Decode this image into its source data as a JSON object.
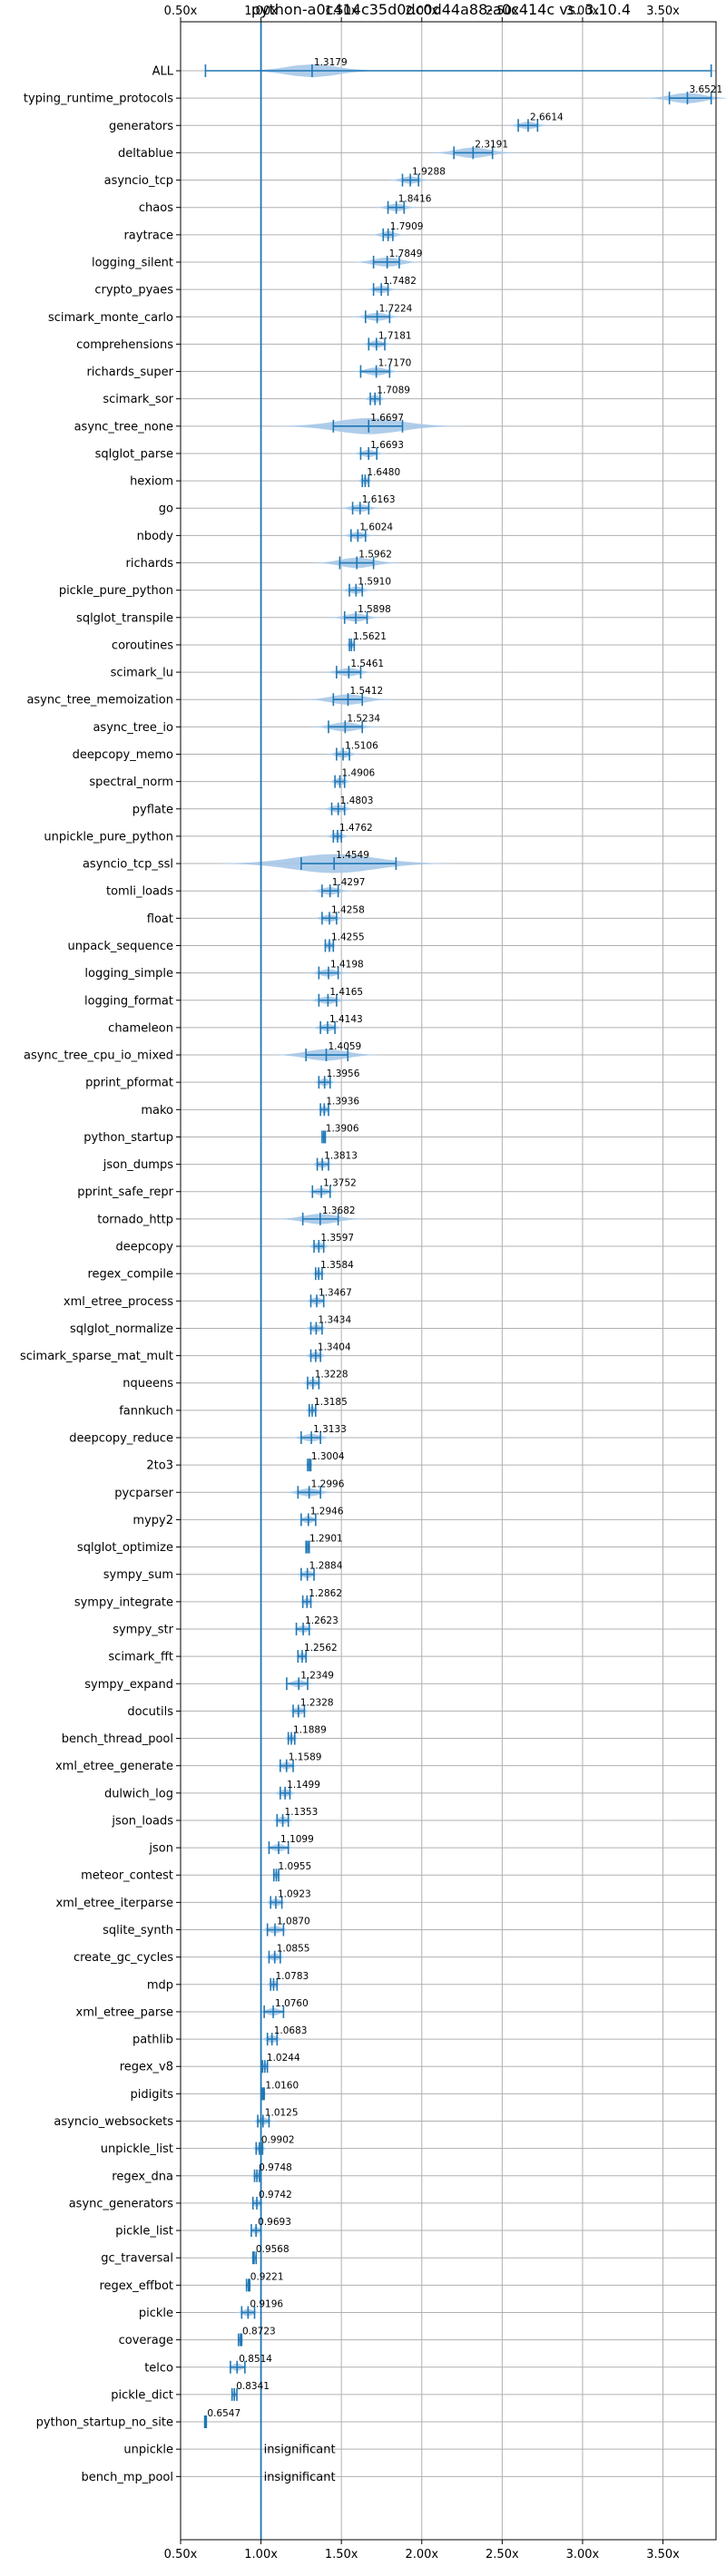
{
  "chart_data": {
    "type": "violin",
    "title": "python-a0c414c35d0dc0d44a88-a0c414c vs. 3.10.4",
    "xlim": [
      0.5,
      3.83
    ],
    "x_ticks": [
      0.5,
      1.0,
      1.5,
      2.0,
      2.5,
      3.0,
      3.5
    ],
    "x_tick_labels": [
      "0.50x",
      "1.00x",
      "1.50x",
      "2.00x",
      "2.50x",
      "3.00x",
      "3.50x"
    ],
    "reference_line": 1.0,
    "colors": {
      "accent": "#1f77b4",
      "violin": "#a6c8e8",
      "grid": "#b0b0b0"
    },
    "insignificant_text": "insignificant",
    "benchmarks": [
      {
        "name": "ALL",
        "value": 1.3179,
        "value_label": "1.3179",
        "min": 0.6547,
        "max": 3.8,
        "spread": 0.15
      },
      {
        "name": "typing_runtime_protocols",
        "value": 3.6521,
        "value_label": "3.6521",
        "min": 3.54,
        "max": 3.8,
        "spread": 0.1
      },
      {
        "name": "generators",
        "value": 2.6614,
        "value_label": "2.6614",
        "min": 2.6,
        "max": 2.72,
        "spread": 0.05
      },
      {
        "name": "deltablue",
        "value": 2.3191,
        "value_label": "2.3191",
        "min": 2.2,
        "max": 2.44,
        "spread": 0.1
      },
      {
        "name": "asyncio_tcp",
        "value": 1.9288,
        "value_label": "1.9288",
        "min": 1.88,
        "max": 1.98,
        "spread": 0.05
      },
      {
        "name": "chaos",
        "value": 1.8416,
        "value_label": "1.8416",
        "min": 1.79,
        "max": 1.89,
        "spread": 0.05
      },
      {
        "name": "raytrace",
        "value": 1.7909,
        "value_label": "1.7909",
        "min": 1.76,
        "max": 1.82,
        "spread": 0.04
      },
      {
        "name": "logging_silent",
        "value": 1.7849,
        "value_label": "1.7849",
        "min": 1.7,
        "max": 1.86,
        "spread": 0.08
      },
      {
        "name": "crypto_pyaes",
        "value": 1.7482,
        "value_label": "1.7482",
        "min": 1.7,
        "max": 1.79,
        "spread": 0.04
      },
      {
        "name": "scimark_monte_carlo",
        "value": 1.7224,
        "value_label": "1.7224",
        "min": 1.65,
        "max": 1.8,
        "spread": 0.06
      },
      {
        "name": "comprehensions",
        "value": 1.7181,
        "value_label": "1.7181",
        "min": 1.67,
        "max": 1.77,
        "spread": 0.04
      },
      {
        "name": "richards_super",
        "value": 1.717,
        "value_label": "1.7170",
        "min": 1.62,
        "max": 1.8,
        "spread": 0.06
      },
      {
        "name": "scimark_sor",
        "value": 1.7089,
        "value_label": "1.7089",
        "min": 1.68,
        "max": 1.74,
        "spread": 0.03
      },
      {
        "name": "async_tree_none",
        "value": 1.6697,
        "value_label": "1.6697",
        "min": 1.45,
        "max": 1.88,
        "spread": 0.2
      },
      {
        "name": "sqlglot_parse",
        "value": 1.6693,
        "value_label": "1.6693",
        "min": 1.62,
        "max": 1.72,
        "spread": 0.04
      },
      {
        "name": "hexiom",
        "value": 1.648,
        "value_label": "1.6480",
        "min": 1.63,
        "max": 1.67,
        "spread": 0.02
      },
      {
        "name": "go",
        "value": 1.6163,
        "value_label": "1.6163",
        "min": 1.57,
        "max": 1.67,
        "spread": 0.05
      },
      {
        "name": "nbody",
        "value": 1.6024,
        "value_label": "1.6024",
        "min": 1.56,
        "max": 1.65,
        "spread": 0.04
      },
      {
        "name": "richards",
        "value": 1.5962,
        "value_label": "1.5962",
        "min": 1.49,
        "max": 1.7,
        "spread": 0.1
      },
      {
        "name": "pickle_pure_python",
        "value": 1.591,
        "value_label": "1.5910",
        "min": 1.55,
        "max": 1.63,
        "spread": 0.04
      },
      {
        "name": "sqlglot_transpile",
        "value": 1.5898,
        "value_label": "1.5898",
        "min": 1.52,
        "max": 1.66,
        "spread": 0.06
      },
      {
        "name": "coroutines",
        "value": 1.5621,
        "value_label": "1.5621",
        "min": 1.55,
        "max": 1.58,
        "spread": 0.015
      },
      {
        "name": "scimark_lu",
        "value": 1.5461,
        "value_label": "1.5461",
        "min": 1.47,
        "max": 1.62,
        "spread": 0.06
      },
      {
        "name": "async_tree_memoization",
        "value": 1.5412,
        "value_label": "1.5412",
        "min": 1.45,
        "max": 1.63,
        "spread": 0.1
      },
      {
        "name": "async_tree_io",
        "value": 1.5234,
        "value_label": "1.5234",
        "min": 1.42,
        "max": 1.63,
        "spread": 0.08
      },
      {
        "name": "deepcopy_memo",
        "value": 1.5106,
        "value_label": "1.5106",
        "min": 1.47,
        "max": 1.55,
        "spread": 0.04
      },
      {
        "name": "spectral_norm",
        "value": 1.4906,
        "value_label": "1.4906",
        "min": 1.46,
        "max": 1.52,
        "spread": 0.03
      },
      {
        "name": "pyflate",
        "value": 1.4803,
        "value_label": "1.4803",
        "min": 1.44,
        "max": 1.52,
        "spread": 0.04
      },
      {
        "name": "unpickle_pure_python",
        "value": 1.4762,
        "value_label": "1.4762",
        "min": 1.45,
        "max": 1.5,
        "spread": 0.03
      },
      {
        "name": "asyncio_tcp_ssl",
        "value": 1.4549,
        "value_label": "1.4549",
        "min": 1.25,
        "max": 1.84,
        "spread": 0.25
      },
      {
        "name": "tomli_loads",
        "value": 1.4297,
        "value_label": "1.4297",
        "min": 1.38,
        "max": 1.48,
        "spread": 0.05
      },
      {
        "name": "float",
        "value": 1.4258,
        "value_label": "1.4258",
        "min": 1.38,
        "max": 1.47,
        "spread": 0.04
      },
      {
        "name": "unpack_sequence",
        "value": 1.4255,
        "value_label": "1.4255",
        "min": 1.4,
        "max": 1.45,
        "spread": 0.02
      },
      {
        "name": "logging_simple",
        "value": 1.4198,
        "value_label": "1.4198",
        "min": 1.36,
        "max": 1.48,
        "spread": 0.05
      },
      {
        "name": "logging_format",
        "value": 1.4165,
        "value_label": "1.4165",
        "min": 1.36,
        "max": 1.47,
        "spread": 0.05
      },
      {
        "name": "chameleon",
        "value": 1.4143,
        "value_label": "1.4143",
        "min": 1.37,
        "max": 1.46,
        "spread": 0.04
      },
      {
        "name": "async_tree_cpu_io_mixed",
        "value": 1.4059,
        "value_label": "1.4059",
        "min": 1.28,
        "max": 1.54,
        "spread": 0.12
      },
      {
        "name": "pprint_pformat",
        "value": 1.3956,
        "value_label": "1.3956",
        "min": 1.36,
        "max": 1.43,
        "spread": 0.03
      },
      {
        "name": "mako",
        "value": 1.3936,
        "value_label": "1.3936",
        "min": 1.37,
        "max": 1.42,
        "spread": 0.02
      },
      {
        "name": "python_startup",
        "value": 1.3906,
        "value_label": "1.3906",
        "min": 1.38,
        "max": 1.4,
        "spread": 0.01
      },
      {
        "name": "json_dumps",
        "value": 1.3813,
        "value_label": "1.3813",
        "min": 1.35,
        "max": 1.42,
        "spread": 0.03
      },
      {
        "name": "pprint_safe_repr",
        "value": 1.3752,
        "value_label": "1.3752",
        "min": 1.32,
        "max": 1.43,
        "spread": 0.04
      },
      {
        "name": "tornado_http",
        "value": 1.3682,
        "value_label": "1.3682",
        "min": 1.26,
        "max": 1.48,
        "spread": 0.1
      },
      {
        "name": "deepcopy",
        "value": 1.3597,
        "value_label": "1.3597",
        "min": 1.33,
        "max": 1.39,
        "spread": 0.03
      },
      {
        "name": "regex_compile",
        "value": 1.3584,
        "value_label": "1.3584",
        "min": 1.34,
        "max": 1.38,
        "spread": 0.02
      },
      {
        "name": "xml_etree_process",
        "value": 1.3467,
        "value_label": "1.3467",
        "min": 1.31,
        "max": 1.39,
        "spread": 0.03
      },
      {
        "name": "sqlglot_normalize",
        "value": 1.3434,
        "value_label": "1.3434",
        "min": 1.31,
        "max": 1.38,
        "spread": 0.03
      },
      {
        "name": "scimark_sparse_mat_mult",
        "value": 1.3404,
        "value_label": "1.3404",
        "min": 1.31,
        "max": 1.37,
        "spread": 0.03
      },
      {
        "name": "nqueens",
        "value": 1.3228,
        "value_label": "1.3228",
        "min": 1.29,
        "max": 1.36,
        "spread": 0.03
      },
      {
        "name": "fannkuch",
        "value": 1.3185,
        "value_label": "1.3185",
        "min": 1.3,
        "max": 1.34,
        "spread": 0.02
      },
      {
        "name": "deepcopy_reduce",
        "value": 1.3133,
        "value_label": "1.3133",
        "min": 1.25,
        "max": 1.37,
        "spread": 0.05
      },
      {
        "name": "2to3",
        "value": 1.3004,
        "value_label": "1.3004",
        "min": 1.29,
        "max": 1.31,
        "spread": 0.01
      },
      {
        "name": "pycparser",
        "value": 1.2996,
        "value_label": "1.2996",
        "min": 1.23,
        "max": 1.37,
        "spread": 0.06
      },
      {
        "name": "mypy2",
        "value": 1.2946,
        "value_label": "1.2946",
        "min": 1.25,
        "max": 1.34,
        "spread": 0.03
      },
      {
        "name": "sqlglot_optimize",
        "value": 1.2901,
        "value_label": "1.2901",
        "min": 1.28,
        "max": 1.3,
        "spread": 0.01
      },
      {
        "name": "sympy_sum",
        "value": 1.2884,
        "value_label": "1.2884",
        "min": 1.25,
        "max": 1.33,
        "spread": 0.03
      },
      {
        "name": "sympy_integrate",
        "value": 1.2862,
        "value_label": "1.2862",
        "min": 1.26,
        "max": 1.31,
        "spread": 0.02
      },
      {
        "name": "sympy_str",
        "value": 1.2623,
        "value_label": "1.2623",
        "min": 1.22,
        "max": 1.3,
        "spread": 0.03
      },
      {
        "name": "scimark_fft",
        "value": 1.2562,
        "value_label": "1.2562",
        "min": 1.23,
        "max": 1.28,
        "spread": 0.02
      },
      {
        "name": "sympy_expand",
        "value": 1.2349,
        "value_label": "1.2349",
        "min": 1.16,
        "max": 1.29,
        "spread": 0.04
      },
      {
        "name": "docutils",
        "value": 1.2328,
        "value_label": "1.2328",
        "min": 1.2,
        "max": 1.27,
        "spread": 0.03
      },
      {
        "name": "bench_thread_pool",
        "value": 1.1889,
        "value_label": "1.1889",
        "min": 1.17,
        "max": 1.21,
        "spread": 0.02
      },
      {
        "name": "xml_etree_generate",
        "value": 1.1589,
        "value_label": "1.1589",
        "min": 1.12,
        "max": 1.2,
        "spread": 0.03
      },
      {
        "name": "dulwich_log",
        "value": 1.1499,
        "value_label": "1.1499",
        "min": 1.12,
        "max": 1.18,
        "spread": 0.03
      },
      {
        "name": "json_loads",
        "value": 1.1353,
        "value_label": "1.1353",
        "min": 1.1,
        "max": 1.17,
        "spread": 0.03
      },
      {
        "name": "json",
        "value": 1.1099,
        "value_label": "1.1099",
        "min": 1.05,
        "max": 1.17,
        "spread": 0.04
      },
      {
        "name": "meteor_contest",
        "value": 1.0955,
        "value_label": "1.0955",
        "min": 1.08,
        "max": 1.11,
        "spread": 0.015
      },
      {
        "name": "xml_etree_iterparse",
        "value": 1.0923,
        "value_label": "1.0923",
        "min": 1.06,
        "max": 1.13,
        "spread": 0.03
      },
      {
        "name": "sqlite_synth",
        "value": 1.087,
        "value_label": "1.0870",
        "min": 1.04,
        "max": 1.14,
        "spread": 0.04
      },
      {
        "name": "create_gc_cycles",
        "value": 1.0855,
        "value_label": "1.0855",
        "min": 1.05,
        "max": 1.12,
        "spread": 0.03
      },
      {
        "name": "mdp",
        "value": 1.0783,
        "value_label": "1.0783",
        "min": 1.06,
        "max": 1.1,
        "spread": 0.02
      },
      {
        "name": "xml_etree_parse",
        "value": 1.076,
        "value_label": "1.0760",
        "min": 1.02,
        "max": 1.14,
        "spread": 0.04
      },
      {
        "name": "pathlib",
        "value": 1.0683,
        "value_label": "1.0683",
        "min": 1.04,
        "max": 1.1,
        "spread": 0.03
      },
      {
        "name": "regex_v8",
        "value": 1.0244,
        "value_label": "1.0244",
        "min": 1.01,
        "max": 1.04,
        "spread": 0.015
      },
      {
        "name": "pidigits",
        "value": 1.016,
        "value_label": "1.0160",
        "min": 1.01,
        "max": 1.02,
        "spread": 0.008
      },
      {
        "name": "asyncio_websockets",
        "value": 1.0125,
        "value_label": "1.0125",
        "min": 0.98,
        "max": 1.05,
        "spread": 0.03
      },
      {
        "name": "unpickle_list",
        "value": 0.9902,
        "value_label": "0.9902",
        "min": 0.97,
        "max": 1.01,
        "spread": 0.02
      },
      {
        "name": "regex_dna",
        "value": 0.9748,
        "value_label": "0.9748",
        "min": 0.96,
        "max": 0.99,
        "spread": 0.015
      },
      {
        "name": "async_generators",
        "value": 0.9742,
        "value_label": "0.9742",
        "min": 0.95,
        "max": 1.0,
        "spread": 0.02
      },
      {
        "name": "pickle_list",
        "value": 0.9693,
        "value_label": "0.9693",
        "min": 0.94,
        "max": 1.0,
        "spread": 0.02
      },
      {
        "name": "gc_traversal",
        "value": 0.9568,
        "value_label": "0.9568",
        "min": 0.95,
        "max": 0.97,
        "spread": 0.01
      },
      {
        "name": "regex_effbot",
        "value": 0.9221,
        "value_label": "0.9221",
        "min": 0.91,
        "max": 0.93,
        "spread": 0.01
      },
      {
        "name": "pickle",
        "value": 0.9196,
        "value_label": "0.9196",
        "min": 0.88,
        "max": 0.96,
        "spread": 0.03
      },
      {
        "name": "coverage",
        "value": 0.8723,
        "value_label": "0.8723",
        "min": 0.86,
        "max": 0.88,
        "spread": 0.01
      },
      {
        "name": "telco",
        "value": 0.8514,
        "value_label": "0.8514",
        "min": 0.81,
        "max": 0.9,
        "spread": 0.03
      },
      {
        "name": "pickle_dict",
        "value": 0.8341,
        "value_label": "0.8341",
        "min": 0.82,
        "max": 0.85,
        "spread": 0.01
      },
      {
        "name": "python_startup_no_site",
        "value": 0.6547,
        "value_label": "0.6547",
        "min": 0.65,
        "max": 0.66,
        "spread": 0.005
      },
      {
        "name": "unpickle",
        "value": null,
        "value_label": null,
        "insignificant": true
      },
      {
        "name": "bench_mp_pool",
        "value": null,
        "value_label": null,
        "insignificant": true
      }
    ]
  }
}
